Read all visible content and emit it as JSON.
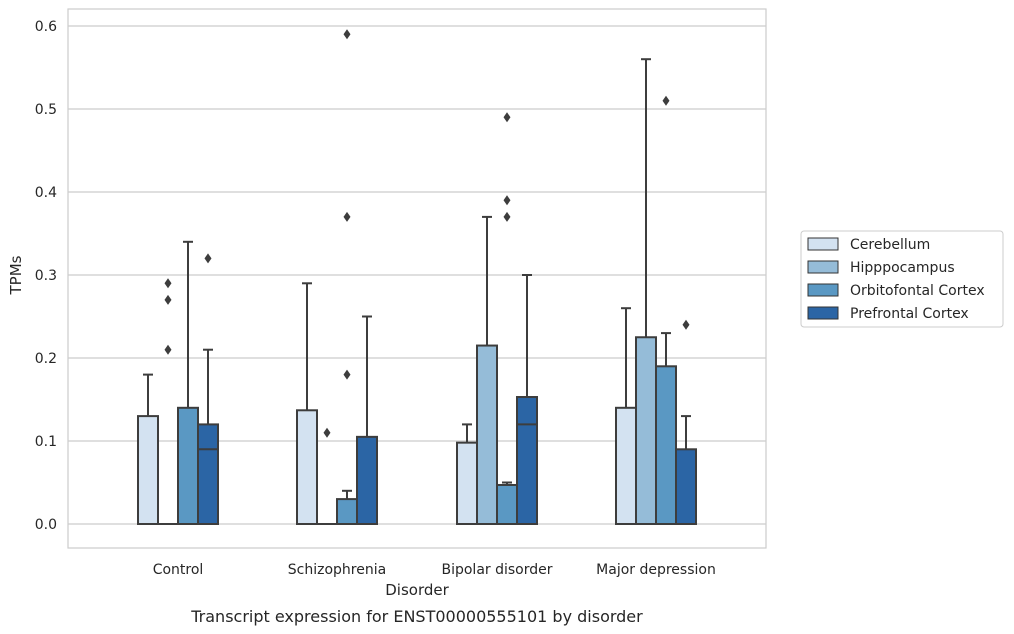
{
  "chart_data": {
    "type": "box",
    "title": "",
    "caption": "Transcript expression for ENST00000555101 by disorder",
    "xlabel": "Disorder",
    "ylabel": "TPMs",
    "ylim": [
      -0.03,
      0.62
    ],
    "yticks": [
      0.0,
      0.1,
      0.2,
      0.3,
      0.4,
      0.5,
      0.6
    ],
    "ytick_labels": [
      "0.0",
      "0.1",
      "0.2",
      "0.3",
      "0.4",
      "0.5",
      "0.6"
    ],
    "grid": "horizontal",
    "legend_position": "right",
    "categories": [
      "Control",
      "Schizophrenia",
      "Bipolar disorder",
      "Major depression"
    ],
    "series": [
      {
        "name": "Cerebellum",
        "color": "#d3e2f1",
        "boxes": [
          {
            "q1": 0.0,
            "median": 0.0,
            "q3": 0.13,
            "whisker_low": 0.0,
            "whisker_high": 0.18,
            "outliers": []
          },
          {
            "q1": 0.0,
            "median": 0.0,
            "q3": 0.137,
            "whisker_low": 0.0,
            "whisker_high": 0.29,
            "outliers": []
          },
          {
            "q1": 0.0,
            "median": 0.0,
            "q3": 0.098,
            "whisker_low": 0.0,
            "whisker_high": 0.12,
            "outliers": []
          },
          {
            "q1": 0.0,
            "median": 0.0,
            "q3": 0.14,
            "whisker_low": 0.0,
            "whisker_high": 0.26,
            "outliers": []
          }
        ]
      },
      {
        "name": "Hipppocampus",
        "color": "#95bcd8",
        "boxes": [
          {
            "q1": 0.0,
            "median": 0.0,
            "q3": 0.0,
            "whisker_low": 0.0,
            "whisker_high": 0.0,
            "outliers": [
              0.21,
              0.27,
              0.29
            ]
          },
          {
            "q1": 0.0,
            "median": 0.0,
            "q3": 0.0,
            "whisker_low": 0.0,
            "whisker_high": 0.0,
            "outliers": [
              0.11
            ]
          },
          {
            "q1": 0.0,
            "median": 0.0,
            "q3": 0.215,
            "whisker_low": 0.0,
            "whisker_high": 0.37,
            "outliers": []
          },
          {
            "q1": 0.0,
            "median": 0.0,
            "q3": 0.225,
            "whisker_low": 0.0,
            "whisker_high": 0.56,
            "outliers": []
          }
        ]
      },
      {
        "name": "Orbitofontal Cortex",
        "color": "#5a98c3",
        "boxes": [
          {
            "q1": 0.0,
            "median": 0.0,
            "q3": 0.14,
            "whisker_low": 0.0,
            "whisker_high": 0.34,
            "outliers": []
          },
          {
            "q1": 0.0,
            "median": 0.0,
            "q3": 0.03,
            "whisker_low": 0.0,
            "whisker_high": 0.04,
            "outliers": [
              0.18,
              0.37,
              0.59
            ]
          },
          {
            "q1": 0.0,
            "median": 0.0,
            "q3": 0.047,
            "whisker_low": 0.0,
            "whisker_high": 0.05,
            "outliers": [
              0.37,
              0.39,
              0.49
            ]
          },
          {
            "q1": 0.0,
            "median": 0.0,
            "q3": 0.19,
            "whisker_low": 0.0,
            "whisker_high": 0.23,
            "outliers": [
              0.51
            ]
          }
        ]
      },
      {
        "name": "Prefrontal Cortex",
        "color": "#2b65a5",
        "boxes": [
          {
            "q1": 0.0,
            "median": 0.09,
            "q3": 0.12,
            "whisker_low": 0.0,
            "whisker_high": 0.21,
            "outliers": [
              0.32
            ]
          },
          {
            "q1": 0.0,
            "median": 0.0,
            "q3": 0.105,
            "whisker_low": 0.0,
            "whisker_high": 0.25,
            "outliers": []
          },
          {
            "q1": 0.0,
            "median": 0.12,
            "q3": 0.153,
            "whisker_low": 0.0,
            "whisker_high": 0.3,
            "outliers": []
          },
          {
            "q1": 0.0,
            "median": 0.0,
            "q3": 0.09,
            "whisker_low": 0.0,
            "whisker_high": 0.13,
            "outliers": [
              0.24
            ]
          }
        ]
      }
    ]
  }
}
